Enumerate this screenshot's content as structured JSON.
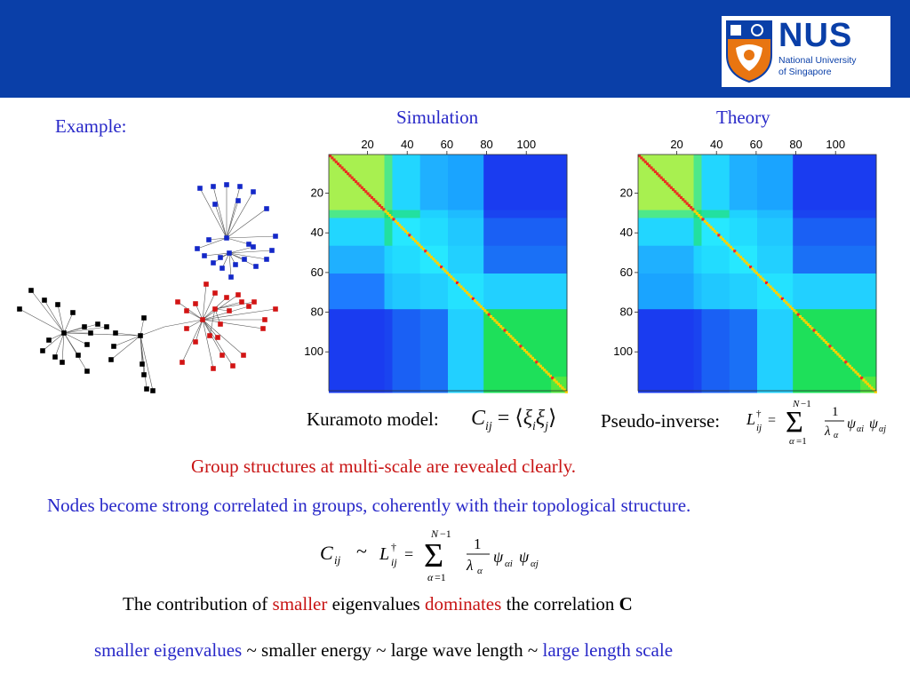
{
  "header": {
    "logo_text": "NUS",
    "logo_subtitle_line1": "National University",
    "logo_subtitle_line2": "of Singapore"
  },
  "slide": {
    "example_label": "Example:",
    "simulation_label": "Simulation",
    "theory_label": "Theory",
    "kuramoto_label": "Kuramoto model:",
    "kuramoto_formula": "C_ij = ⟨ξ_i ξ_j⟩",
    "pseudo_inverse_label": "Pseudo-inverse:",
    "pseudo_inverse_formula": "L†_ij = Σ_{α=1}^{N−1} (1/λ_α) ψ_αi ψ_αj",
    "line_group": "Group structures at multi-scale are revealed clearly.",
    "line_nodes": "Nodes become strong correlated in groups, coherently with their topological structure.",
    "equivalence_formula": "C_ij ~ L†_ij = Σ_{α=1}^{N−1} (1/λ_α) ψ_αi ψ_αj",
    "contribution": {
      "part1": "The contribution of ",
      "smaller": "smaller",
      "part2": " eigenvalues ",
      "dominates": "dominates",
      "part3": " the correlation ",
      "C": "C"
    },
    "scale_line": {
      "part1": "smaller eigenvalues",
      "part2": " ~ smaller energy ~ large wave length ~ ",
      "part3": "large length scale"
    }
  },
  "heatmaps": {
    "x_ticks": [
      "20",
      "40",
      "60",
      "80",
      "100"
    ],
    "y_ticks": [
      "20",
      "40",
      "60",
      "80",
      "100"
    ]
  },
  "colors": {
    "header": "#0a3fa8",
    "blue_text": "#2828c8",
    "red_text": "#c81414",
    "network_blue": "#1428c8",
    "network_red": "#d21414",
    "network_black": "#000000"
  }
}
